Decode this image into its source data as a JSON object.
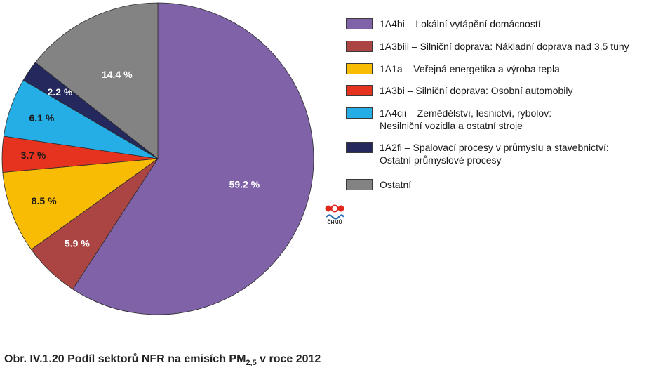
{
  "chart_data": {
    "type": "pie",
    "title": "",
    "slices": [
      {
        "code": "1A4bi",
        "label": "1A4bi  – Lokální vytápění domácností",
        "value": 59.2,
        "value_label": "59.2 %",
        "color": "#8062a8"
      },
      {
        "code": "1A3biii",
        "label": "1A3biii – Silniční doprava: Nákladní doprava nad 3,5 tuny",
        "value": 5.9,
        "value_label": "5.9 %",
        "color": "#ab4543"
      },
      {
        "code": "1A1a",
        "label": "1A1a – Veřejná energetika a výroba tepla",
        "value": 8.5,
        "value_label": "8.5 %",
        "color": "#f9bc04"
      },
      {
        "code": "1A3bi",
        "label": "1A3bi – Silniční doprava: Osobní automobily",
        "value": 3.7,
        "value_label": "3.7 %",
        "color": "#e5331f"
      },
      {
        "code": "1A4cii",
        "label": "1A4cii – Zemědělství, lesnictví, rybolov:\nNesilniční vozidla a ostatní stroje",
        "value": 6.1,
        "value_label": "6.1 %",
        "color": "#25ade6"
      },
      {
        "code": "1A2fi",
        "label": "1A2fi – Spalovací procesy v průmyslu a stavebnictví:\nOstatní průmyslové procesy",
        "value": 2.2,
        "value_label": "2.2 %",
        "color": "#24285c"
      },
      {
        "code": "Ostatní",
        "label": "Ostatní",
        "value": 14.4,
        "value_label": "14.4 %",
        "color": "#838383"
      }
    ],
    "legend_position": "right"
  },
  "logo": {
    "text": "ČHMÚ"
  },
  "caption": {
    "prefix": "Obr. IV.1.20  Podíl sektorů NFR na emisích PM",
    "subscript": "2,5",
    "suffix": " v roce 2012"
  }
}
